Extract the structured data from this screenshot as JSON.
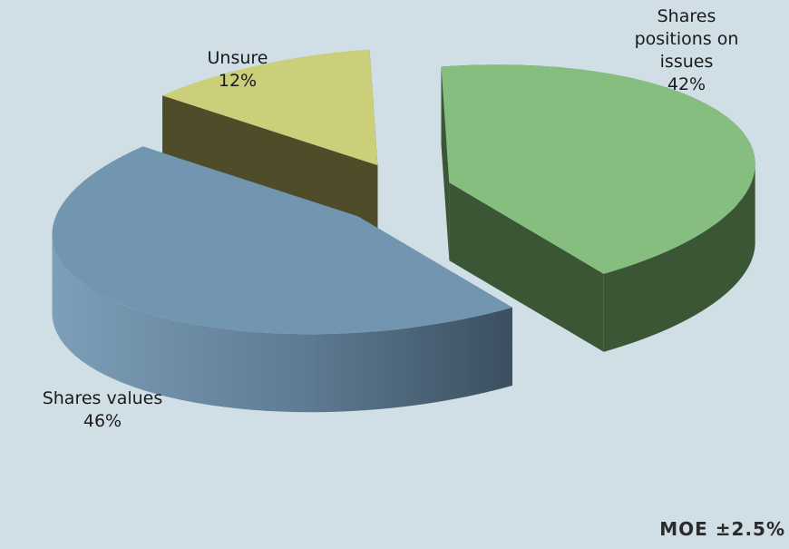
{
  "chart_data": {
    "type": "pie",
    "style": "3d-exploded",
    "slices": [
      {
        "label": "Shares positions on issues",
        "value": 42,
        "display": "42%",
        "color": "#86be7f",
        "side_color": "#3a5635",
        "label_lines": [
          "Shares",
          "positions on",
          "issues"
        ]
      },
      {
        "label": "Shares values",
        "value": 46,
        "display": "46%",
        "color": "#7396b0",
        "side_color": "#4b6377",
        "label_lines": [
          "Shares values"
        ]
      },
      {
        "label": "Unsure",
        "value": 12,
        "display": "12%",
        "color": "#cccf7a",
        "side_color": "#4f4c2a",
        "label_lines": [
          "Unsure"
        ]
      }
    ]
  },
  "footnote": "MOE ±2.5%",
  "background_color": "#cfdfe5"
}
